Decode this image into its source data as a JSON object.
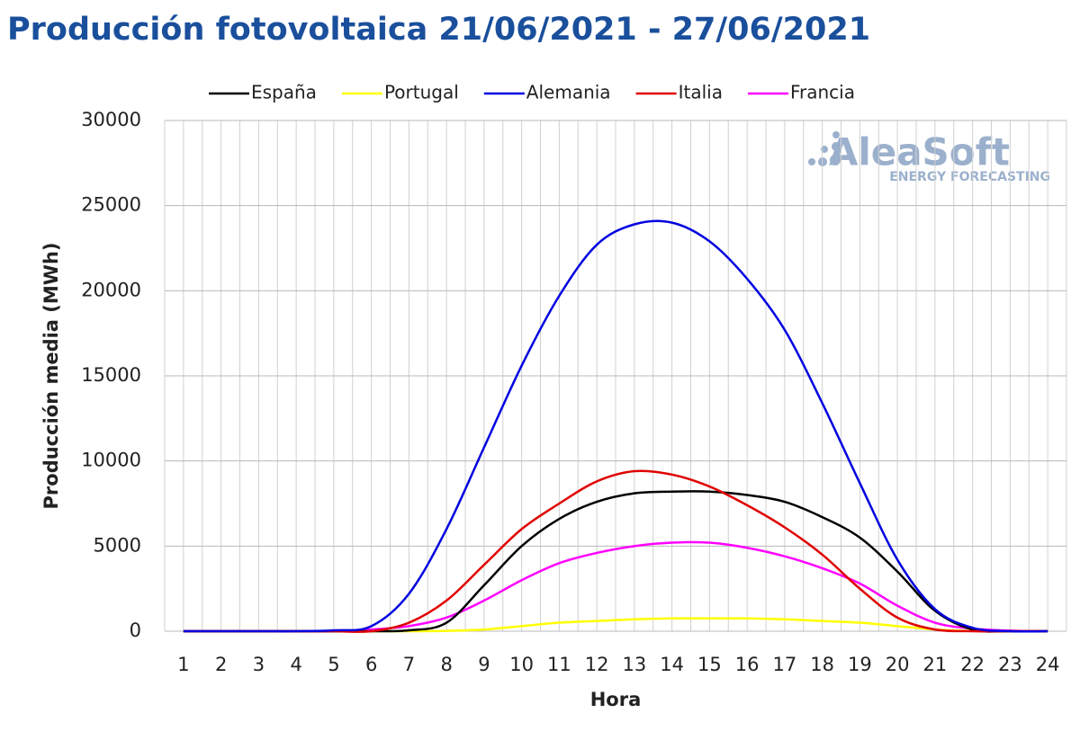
{
  "chart_data": {
    "type": "line",
    "title": "Producción fotovoltaica 21/06/2021 - 27/06/2021",
    "y_label": "Producción media (MWh)",
    "x_label": "Hora",
    "logo": {
      "name": "AleaSoft",
      "tagline": "ENERGY FORECASTING"
    },
    "categories": [
      "1",
      "2",
      "3",
      "4",
      "5",
      "6",
      "7",
      "8",
      "9",
      "10",
      "11",
      "12",
      "13",
      "14",
      "15",
      "16",
      "17",
      "18",
      "19",
      "20",
      "21",
      "22",
      "23",
      "24"
    ],
    "ylim": [
      0,
      30000
    ],
    "yticks": [
      0,
      5000,
      10000,
      15000,
      20000,
      25000,
      30000
    ],
    "grid": true,
    "legend": "top",
    "series": [
      {
        "name": "España",
        "color": "#000000",
        "values": [
          0,
          0,
          0,
          0,
          0,
          0,
          50,
          500,
          2700,
          5000,
          6600,
          7600,
          8100,
          8200,
          8200,
          8000,
          7600,
          6700,
          5500,
          3500,
          1200,
          100,
          0,
          0
        ]
      },
      {
        "name": "Portugal",
        "color": "#ffff00",
        "values": [
          0,
          0,
          0,
          0,
          0,
          0,
          0,
          20,
          100,
          300,
          500,
          600,
          700,
          750,
          750,
          750,
          700,
          600,
          500,
          300,
          100,
          10,
          0,
          0
        ]
      },
      {
        "name": "Alemania",
        "color": "#0000e0",
        "values": [
          0,
          0,
          0,
          0,
          50,
          300,
          2200,
          6000,
          10800,
          15600,
          19700,
          22700,
          23900,
          24000,
          22900,
          20700,
          17700,
          13400,
          8700,
          4200,
          1300,
          200,
          0,
          0
        ]
      },
      {
        "name": "Italia",
        "color": "#e00000",
        "values": [
          0,
          0,
          0,
          0,
          0,
          0,
          500,
          1800,
          3900,
          6000,
          7500,
          8800,
          9400,
          9200,
          8500,
          7400,
          6100,
          4500,
          2500,
          800,
          100,
          0,
          0,
          0
        ]
      },
      {
        "name": "Francia",
        "color": "#ff00ff",
        "values": [
          0,
          0,
          0,
          0,
          0,
          100,
          300,
          800,
          1800,
          3000,
          4000,
          4600,
          5000,
          5200,
          5200,
          4900,
          4400,
          3700,
          2800,
          1500,
          500,
          150,
          30,
          0
        ]
      }
    ]
  }
}
